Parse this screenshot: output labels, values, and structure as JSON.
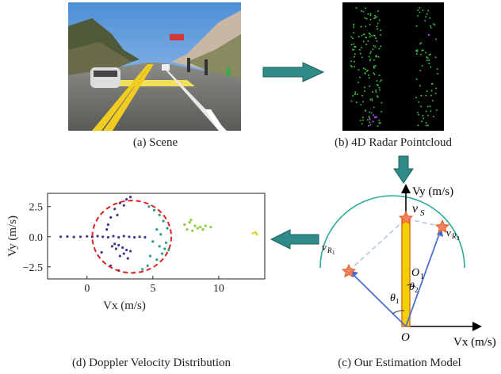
{
  "captions": {
    "a": "(a) Scene",
    "b": "(b) 4D Radar Pointcloud",
    "c": "(c) Our Estimation Model",
    "d": "(d) Doppler Velocity Distribution"
  },
  "model": {
    "y_axis_label": "Vy (m/s)",
    "x_axis_label": "Vx (m/s)",
    "origin_label": "O",
    "o1_label": "O",
    "o1_sub": "1",
    "vs_label": "v",
    "vs_sub": "S",
    "vr1_label": "v",
    "vr1_sub": "R",
    "vr1_subsub": "1",
    "vr2_label": "v",
    "vr2_sub": "R",
    "vr2_subsub": "2",
    "theta1": "θ",
    "theta1_sub": "1",
    "theta2": "θ",
    "theta2_sub": "2"
  },
  "colors": {
    "arrow_teal": "#2e8b88",
    "arc_teal": "#2aa89a",
    "vector_blue": "#4a6fd0",
    "velocity_bar": "#f2d000",
    "velocity_bar_border": "#e07a2a",
    "circle_red": "#e02020",
    "cluster_purple": "#3f3a8f",
    "cluster_teal": "#22a08c",
    "cluster_green": "#8ccc3c",
    "cluster_yellow": "#d8d83a"
  },
  "chart_data": {
    "type": "scatter",
    "title": "",
    "xlabel": "Vx (m/s)",
    "ylabel": "Vy (m/s)",
    "xlim": [
      -3,
      13.5
    ],
    "ylim": [
      -3.5,
      3.6
    ],
    "xticks": [
      0,
      5,
      10
    ],
    "xtick_labels": [
      "0",
      "5",
      "10"
    ],
    "yticks": [
      2.5,
      0.0,
      -2.5
    ],
    "ytick_labels": [
      "2.5",
      "0.0",
      "−2.5"
    ],
    "grid": false,
    "fitted_circle": {
      "center": [
        3.4,
        0.0
      ],
      "radius": 3.0,
      "style": "dashed",
      "color": "#e02020"
    },
    "series": [
      {
        "color": "#3f3a8f",
        "points": [
          [
            -2.0,
            0.0
          ],
          [
            -1.5,
            0.02
          ],
          [
            -1.0,
            -0.02
          ],
          [
            -0.5,
            0.0
          ],
          [
            0.0,
            0.03
          ],
          [
            0.4,
            0.0
          ],
          [
            0.8,
            0.05
          ],
          [
            1.2,
            0.0
          ],
          [
            1.6,
            -0.05
          ],
          [
            2.0,
            0.05
          ],
          [
            2.4,
            -0.05
          ],
          [
            2.8,
            0.05
          ],
          [
            3.2,
            0.0
          ],
          [
            3.6,
            -0.05
          ],
          [
            4.0,
            0.0
          ],
          [
            4.4,
            -0.05
          ],
          [
            2.1,
            -0.6
          ],
          [
            2.4,
            -0.7
          ],
          [
            2.7,
            -0.9
          ],
          [
            3.0,
            -1.1
          ],
          [
            3.3,
            -1.2
          ],
          [
            2.5,
            -1.6
          ],
          [
            2.8,
            -1.4
          ],
          [
            3.1,
            -1.8
          ],
          [
            2.2,
            -1.0
          ],
          [
            1.9,
            -0.8
          ],
          [
            1.6,
            1.0
          ],
          [
            1.8,
            1.6
          ],
          [
            2.1,
            2.3
          ],
          [
            2.5,
            2.8
          ],
          [
            3.0,
            3.1
          ],
          [
            3.3,
            3.3
          ],
          [
            2.8,
            2.6
          ],
          [
            2.3,
            1.8
          ],
          [
            1.5,
            0.6
          ],
          [
            1.1,
            -1.3
          ],
          [
            1.8,
            -2.4
          ],
          [
            2.4,
            -2.8
          ]
        ]
      },
      {
        "color": "#22a08c",
        "points": [
          [
            4.7,
            2.5
          ],
          [
            5.1,
            2.2
          ],
          [
            5.5,
            1.8
          ],
          [
            5.8,
            1.3
          ],
          [
            6.1,
            0.7
          ],
          [
            5.3,
            0.6
          ],
          [
            5.6,
            0.2
          ],
          [
            5.0,
            -0.4
          ],
          [
            5.5,
            -0.8
          ],
          [
            5.9,
            -1.0
          ],
          [
            6.2,
            -1.1
          ],
          [
            4.8,
            -1.6
          ],
          [
            5.3,
            -1.9
          ],
          [
            4.6,
            -2.4
          ],
          [
            4.2,
            -2.7
          ],
          [
            5.7,
            -1.4
          ],
          [
            6.0,
            -0.5
          ]
        ]
      },
      {
        "color": "#8ccc3c",
        "points": [
          [
            7.4,
            1.0
          ],
          [
            7.8,
            1.2
          ],
          [
            8.2,
            0.9
          ],
          [
            8.6,
            0.8
          ],
          [
            9.0,
            0.9
          ],
          [
            9.4,
            0.8
          ],
          [
            7.6,
            0.6
          ],
          [
            8.0,
            0.5
          ],
          [
            8.4,
            0.7
          ],
          [
            8.8,
            0.6
          ],
          [
            7.9,
            1.4
          ]
        ]
      },
      {
        "color": "#d8d83a",
        "points": [
          [
            12.6,
            0.3
          ],
          [
            12.9,
            0.2
          ],
          [
            12.8,
            0.35
          ]
        ]
      }
    ]
  }
}
